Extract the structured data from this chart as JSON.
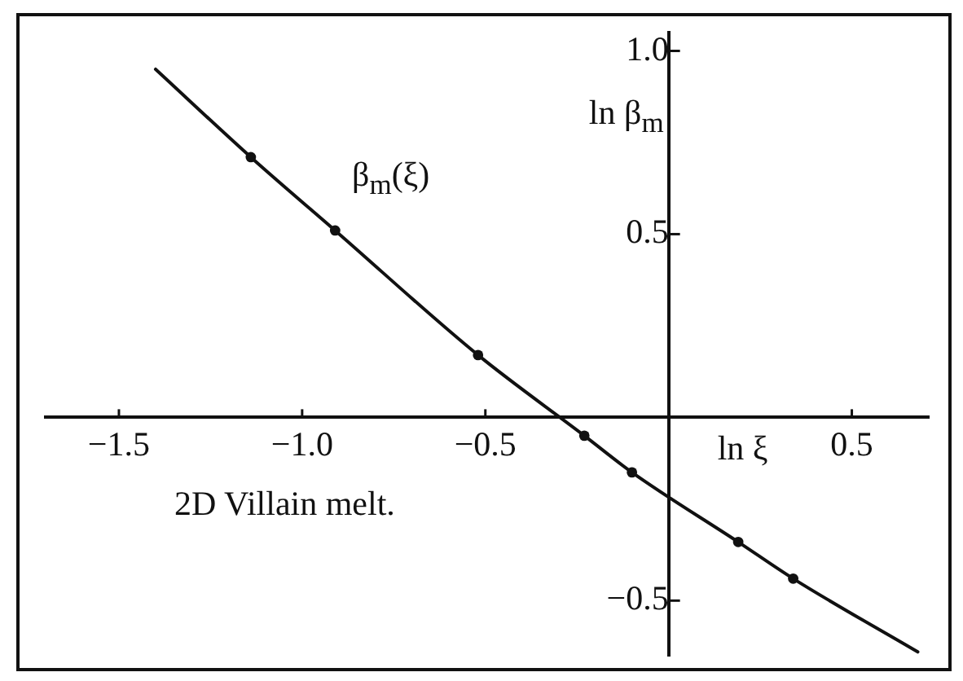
{
  "chart_data": {
    "type": "line",
    "xlabel": "ln ξ",
    "ylabel": "ln β$_{m}$",
    "annotations": [
      "β$_{m}$(ξ)",
      "2D Villain melt."
    ],
    "xlim": [
      -1.7,
      0.71
    ],
    "ylim": [
      -0.65,
      1.05
    ],
    "xticks": [
      {
        "value": -1.5,
        "label": "−1.5"
      },
      {
        "value": -1,
        "label": "−1.0"
      },
      {
        "value": -0.5,
        "label": "−0.5"
      },
      0.5
    ],
    "yticks": [
      {
        "value": -0.5,
        "label": "−0.5"
      },
      0.5,
      {
        "value": 1,
        "label": "1.0"
      }
    ],
    "grid": false,
    "legend": false,
    "series": [
      {
        "type": "line",
        "color": "#111111",
        "x": [
          -1.4,
          -1.14,
          -0.91,
          -0.52,
          -0.23,
          -0.1,
          0.19,
          0.34,
          0.68
        ],
        "values": [
          0.95,
          0.71,
          0.51,
          0.17,
          -0.05,
          -0.15,
          -0.34,
          -0.44,
          -0.64
        ]
      },
      {
        "type": "scatter",
        "color": "#111111",
        "marker": "circle",
        "x": [
          -1.14,
          -0.91,
          -0.52,
          -0.23,
          -0.1,
          0.19,
          0.34
        ],
        "values": [
          0.71,
          0.51,
          0.17,
          -0.05,
          -0.15,
          -0.34,
          -0.44
        ]
      }
    ]
  }
}
